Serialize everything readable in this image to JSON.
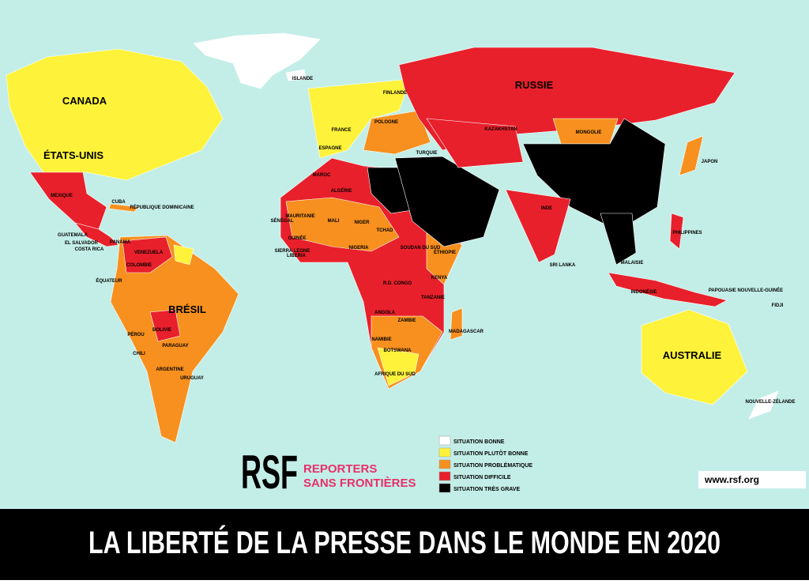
{
  "title": "LA LIBERTÉ DE LA PRESSE DANS LE MONDE EN 2020",
  "logo": {
    "mark": "RSF",
    "line1": "REPORTERS",
    "line2": "SANS FRONTIÈRES"
  },
  "url": "www.rsf.org",
  "legend": [
    {
      "label": "SITUATION BONNE",
      "color": "#ffffff"
    },
    {
      "label": "SITUATION PLUTÔT BONNE",
      "color": "#fff23a"
    },
    {
      "label": "SITUATION PROBLÉMATIQUE",
      "color": "#f7901e"
    },
    {
      "label": "SITUATION DIFFICILE",
      "color": "#e8202b"
    },
    {
      "label": "SITUATION TRÈS GRAVE",
      "color": "#000000"
    }
  ],
  "labels": {
    "large": [
      "CANADA",
      "ÉTATS-UNIS",
      "RUSSIE",
      "BRÉSIL",
      "AUSTRALIE"
    ],
    "small": [
      "MEXIQUE",
      "KAZAKHSTAN",
      "MONGOLIE",
      "INDE",
      "JAPON",
      "PHILIPPINES",
      "INDONÉSIE",
      "NOUVELLE-ZÉLANDE",
      "PÉROU",
      "BOLIVIE",
      "CHILI",
      "ARGENTINE",
      "PARAGUAY",
      "URUGUAY",
      "VENEZUELA",
      "COLOMBIE",
      "ÉQUATEUR",
      "ALGÉRIE",
      "MALI",
      "NIGER",
      "TCHAD",
      "MAURITANIE",
      "SÉNÉGAL",
      "ÉTHIOPIE",
      "KENYA",
      "SOUDAN DU SUD",
      "NIGERIA",
      "R.D. CONGO",
      "TANZANIE",
      "ANGOLA",
      "ZAMBIE",
      "NAMIBIE",
      "BOTSWANA",
      "AFRIQUE DU SUD",
      "MADAGASCAR",
      "ISLANDE",
      "FINLANDE",
      "POLOGNE",
      "FRANCE",
      "ESPAGNE",
      "TURQUIE",
      "MAROC",
      "CUBA",
      "RÉPUBLIQUE DOMINICAINE",
      "GUATEMALA",
      "EL SALVADOR",
      "COSTA RICA",
      "PANAMA",
      "SRI LANKA",
      "MALAISIE",
      "PAPOUASIE NOUVELLE-GUINÉE",
      "FIDJI",
      "LIBERIA",
      "SIERRA LEONE",
      "GUINÉE"
    ]
  }
}
